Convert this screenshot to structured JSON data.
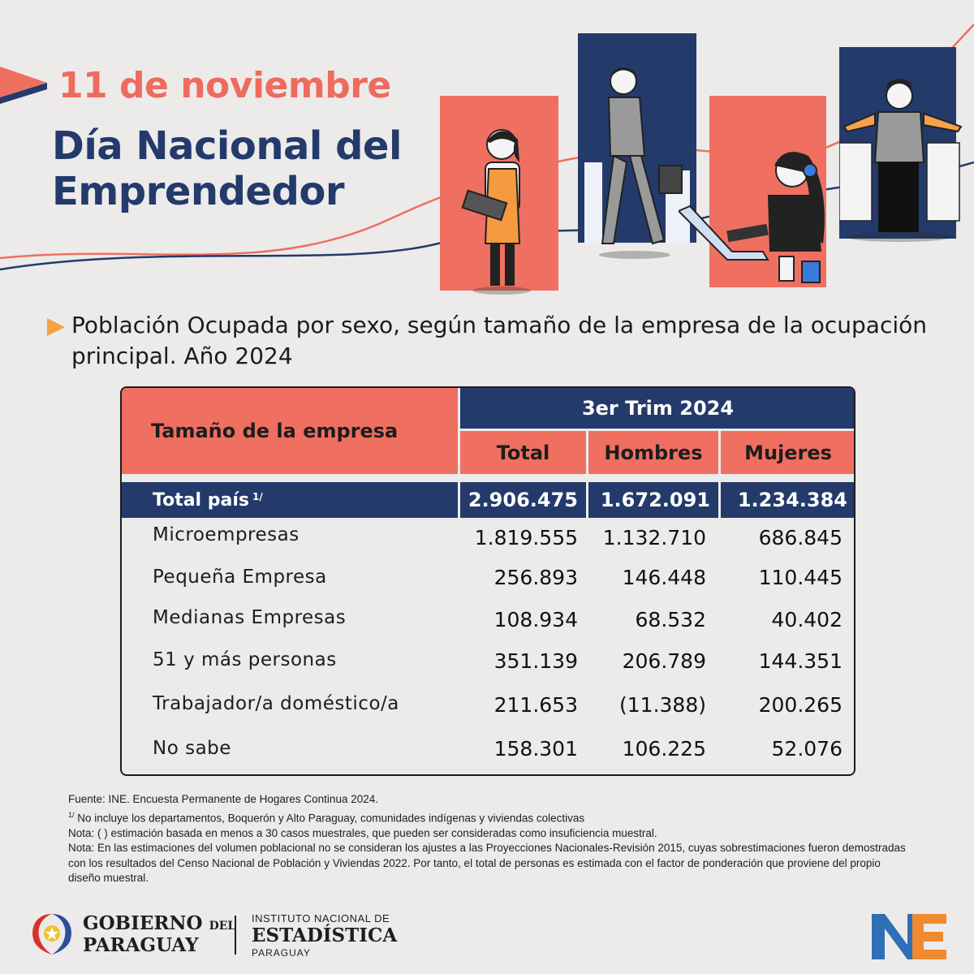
{
  "header": {
    "date": "11 de noviembre",
    "title": "Día Nacional del Emprendedor"
  },
  "subtitle": "Población Ocupada por sexo, según tamaño de la empresa de la ocupación principal. Año 2024",
  "table": {
    "row_header": "Tamaño de la empresa",
    "period": "3er Trim 2024",
    "columns": [
      "Total",
      "Hombres",
      "Mujeres"
    ],
    "total_row": {
      "label": "Total país",
      "note_mark": "1/",
      "values": [
        "2.906.475",
        "1.672.091",
        "1.234.384"
      ]
    },
    "rows": [
      {
        "label": "Microempresas",
        "values": [
          "1.819.555",
          "1.132.710",
          "686.845"
        ]
      },
      {
        "label": "Pequeña Empresa",
        "values": [
          "256.893",
          "146.448",
          "110.445"
        ]
      },
      {
        "label": "Medianas Empresas",
        "values": [
          "108.934",
          "68.532",
          "40.402"
        ]
      },
      {
        "label": "51 y más personas",
        "values": [
          "351.139",
          "206.789",
          "144.351"
        ]
      },
      {
        "label": "Trabajador/a doméstico/a",
        "values": [
          "211.653",
          "(11.388)",
          "200.265"
        ]
      },
      {
        "label": "No sabe",
        "values": [
          "158.301",
          "106.225",
          "52.076"
        ]
      }
    ]
  },
  "notes": {
    "source": "Fuente: INE. Encuesta Permanente de Hogares Continua 2024.",
    "note1_mark": "1/",
    "note1": "No incluye los departamentos, Boquerón y Alto Paraguay, comunidades indígenas y viviendas colectivas",
    "note2": "Nota: ( ) estimación basada en menos a 30 casos muestrales, que pueden ser consideradas como insuficiencia muestral.",
    "note3": "Nota:  En las estimaciones del volumen poblacional no se consideran los ajustes a las Proyecciones Nacionales-Revisión 2015, cuyas sobrestimaciones fueron demostradas con los resultados del Censo Nacional de Población y Viviendas 2022. Por tanto, el total de personas es estimada con el factor de ponderación que proviene del propio diseño muestral."
  },
  "footer": {
    "gov_line1": "GOBIERNO",
    "gov_del": "DEL",
    "gov_line2": "PARAGUAY",
    "ine_line1": "INSTITUTO NACIONAL DE",
    "ine_line2": "ESTADÍSTICA",
    "ine_line3": "PARAGUAY",
    "ine_logo_text": "INE"
  },
  "colors": {
    "accent": "#ef6f61",
    "navy": "#233a6b",
    "background": "#ecebea"
  }
}
